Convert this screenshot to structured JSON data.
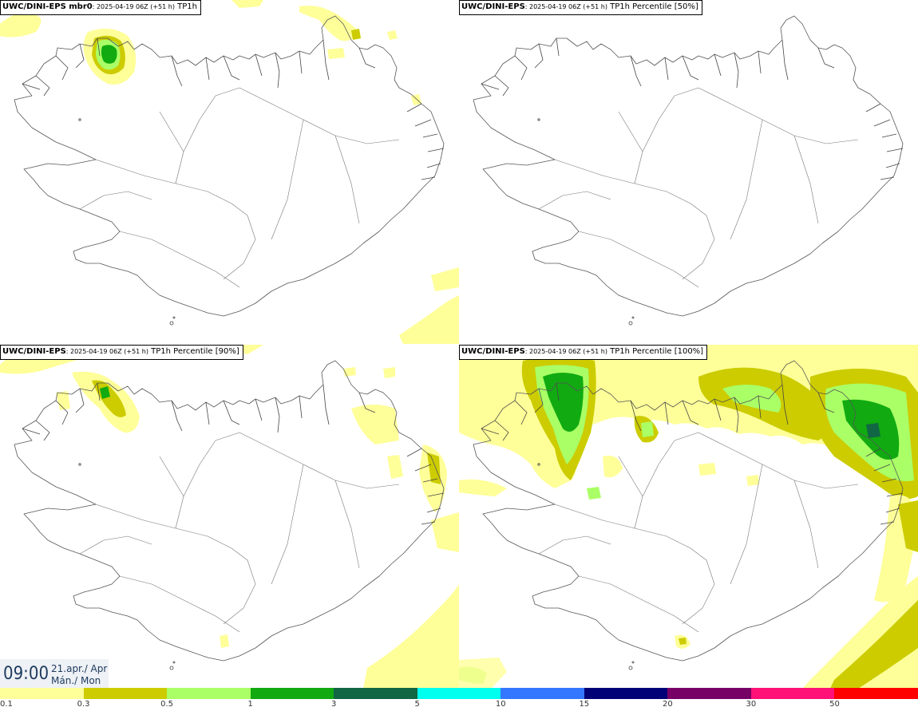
{
  "panels": [
    {
      "model": "UWC/DINI-EPS mbr0",
      "meta": ": 2025-04-19 06Z (+51 h)",
      "field": " TP1h"
    },
    {
      "model": "UWC/DINI-EPS",
      "meta": ": 2025-04-19 06Z (+51 h)",
      "field": " TP1h Percentile [50%]"
    },
    {
      "model": "UWC/DINI-EPS",
      "meta": ": 2025-04-19 06Z (+51 h)",
      "field": " TP1h Percentile [90%]"
    },
    {
      "model": "UWC/DINI-EPS",
      "meta": ": 2025-04-19 06Z (+51 h)",
      "field": " TP1h Percentile [100%]"
    }
  ],
  "clock": {
    "time": "09:00",
    "date_line": "21.apr./ Apr",
    "day_line": "Mán./ Mon"
  },
  "colorbar": {
    "colors": [
      "#ffff99",
      "#cccc00",
      "#aaff66",
      "#11aa11",
      "#116644",
      "#00ffee",
      "#3377ff",
      "#000077",
      "#770066",
      "#ff1177",
      "#ff0000"
    ],
    "labels": [
      "0.1",
      "0.3",
      "0.5",
      "1",
      "3",
      "5",
      "10",
      "15",
      "20",
      "30",
      "50"
    ]
  },
  "precip_colors": {
    "light": "#ffff99",
    "medium": "#cccc00",
    "heavy": "#aaff66",
    "intense": "#11aa11"
  }
}
